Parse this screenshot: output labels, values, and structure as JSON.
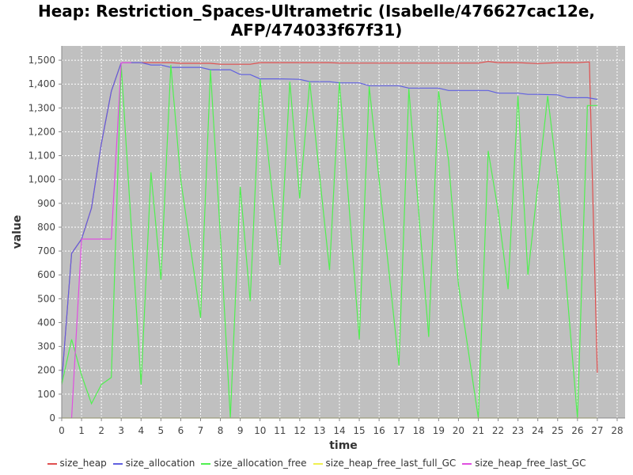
{
  "chart_data": {
    "type": "line",
    "title": "Heap: Restriction_Spaces-Ultrametric (Isabelle/476627cac12e, AFP/474033f67f31)",
    "title_lines": [
      "Heap: Restriction_Spaces-Ultrametric (Isabelle/476627cac12e,",
      "AFP/474033f67f31)"
    ],
    "xlabel": "time",
    "ylabel": "value",
    "xlim": [
      0,
      28.4
    ],
    "ylim": [
      0,
      1560
    ],
    "x_ticks": [
      0,
      1,
      2,
      3,
      4,
      5,
      6,
      7,
      8,
      9,
      10,
      11,
      12,
      13,
      14,
      15,
      16,
      17,
      18,
      19,
      20,
      21,
      22,
      23,
      24,
      25,
      26,
      27,
      28
    ],
    "y_ticks": [
      0,
      100,
      200,
      300,
      400,
      500,
      600,
      700,
      800,
      900,
      1000,
      1100,
      1200,
      1300,
      1400,
      1500
    ],
    "y_tick_labels": [
      "0",
      "100",
      "200",
      "300",
      "400",
      "500",
      "600",
      "700",
      "800",
      "900",
      "1,000",
      "1,100",
      "1,200",
      "1,300",
      "1,400",
      "1,500"
    ],
    "grid": true,
    "legend_position": "bottom",
    "plot_background": "#c0c0c0",
    "series": [
      {
        "name": "size_heap",
        "color": "#e05050",
        "x": [
          0,
          0.5,
          1,
          1.5,
          2,
          2.5,
          3,
          3.5,
          4,
          4.5,
          5,
          5.5,
          6,
          6.5,
          7,
          7.5,
          8,
          8.5,
          9,
          9.5,
          10,
          10.5,
          11,
          11.5,
          12,
          12.5,
          13,
          13.5,
          14,
          15,
          16,
          17,
          18,
          19,
          20,
          21,
          21.5,
          22,
          23,
          24,
          25,
          26,
          26.6,
          27
        ],
        "y": [
          150,
          690,
          750,
          880,
          1150,
          1370,
          1490,
          1490,
          1490,
          1490,
          1490,
          1490,
          1487,
          1487,
          1487,
          1487,
          1483,
          1483,
          1483,
          1483,
          1490,
          1490,
          1490,
          1490,
          1490,
          1490,
          1490,
          1490,
          1488,
          1488,
          1488,
          1488,
          1488,
          1488,
          1488,
          1488,
          1495,
          1490,
          1490,
          1486,
          1490,
          1490,
          1493,
          190
        ]
      },
      {
        "name": "size_allocation",
        "color": "#6060e0",
        "x": [
          0,
          0.5,
          1,
          1.5,
          2,
          2.5,
          3,
          3.5,
          4,
          4.5,
          5,
          5.5,
          6,
          6.5,
          7,
          7.5,
          8,
          8.5,
          9,
          9.5,
          10,
          11,
          12,
          12.5,
          13,
          13.5,
          14,
          15,
          15.5,
          16,
          17,
          17.5,
          18,
          19,
          19.5,
          20,
          21,
          21.5,
          22,
          23,
          23.5,
          24,
          25,
          25.5,
          26,
          26.5,
          27
        ],
        "y": [
          150,
          690,
          750,
          880,
          1150,
          1370,
          1490,
          1490,
          1490,
          1480,
          1480,
          1470,
          1470,
          1470,
          1470,
          1460,
          1460,
          1460,
          1440,
          1440,
          1422,
          1422,
          1420,
          1410,
          1410,
          1410,
          1405,
          1405,
          1393,
          1393,
          1393,
          1383,
          1383,
          1383,
          1373,
          1373,
          1373,
          1373,
          1362,
          1362,
          1357,
          1357,
          1355,
          1343,
          1343,
          1343,
          1336
        ]
      },
      {
        "name": "size_allocation_free",
        "color": "#50f050",
        "x": [
          0,
          0.5,
          1,
          1.5,
          2,
          2.5,
          3,
          4,
          4.5,
          5,
          5.5,
          6,
          7,
          7.5,
          8,
          8.5,
          9,
          9.5,
          10,
          11,
          11.5,
          12,
          12.5,
          13.5,
          14,
          15,
          15.5,
          17,
          17.5,
          18.5,
          19,
          19.5,
          20,
          21,
          21.5,
          22,
          22.5,
          23,
          23.5,
          24.5,
          25,
          26,
          26.5,
          27
        ],
        "y": [
          140,
          330,
          180,
          60,
          140,
          170,
          1480,
          140,
          1030,
          580,
          1480,
          1000,
          420,
          1460,
          760,
          0,
          970,
          490,
          1420,
          640,
          1410,
          920,
          1410,
          620,
          1410,
          330,
          1390,
          220,
          1380,
          340,
          1370,
          1080,
          560,
          0,
          1120,
          870,
          540,
          1350,
          600,
          1350,
          1000,
          0,
          1310,
          1310
        ]
      },
      {
        "name": "size_heap_free_last_full_GC",
        "color": "#f0f050",
        "x": [
          0,
          27
        ],
        "y": [
          0,
          0
        ]
      },
      {
        "name": "size_heap_free_last_GC",
        "color": "#e050e0",
        "x": [
          0.5,
          1,
          1.5,
          2,
          2.5,
          3,
          3.5
        ],
        "y": [
          0,
          750,
          750,
          750,
          750,
          1490,
          1490
        ]
      }
    ]
  }
}
